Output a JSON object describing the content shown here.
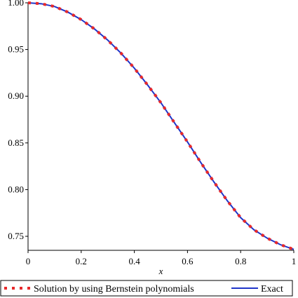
{
  "chart_data": {
    "type": "line",
    "title": "",
    "xlabel": "x",
    "ylabel": "",
    "xlim": [
      0,
      1
    ],
    "ylim": [
      0.735,
      1.0
    ],
    "x_ticks": [
      0,
      0.2,
      0.4,
      0.6,
      0.8,
      1
    ],
    "x_tick_labels": [
      "0",
      "0.2",
      "0.4",
      "0.6",
      "0.8",
      "1"
    ],
    "y_ticks": [
      0.75,
      0.8,
      0.85,
      0.9,
      0.95,
      1.0
    ],
    "y_tick_labels": [
      "0.75",
      "0.80",
      "0.85",
      "0.90",
      "0.95",
      "1.00"
    ],
    "grid": false,
    "legend_position": "bottom",
    "x": [
      0,
      0.05,
      0.1,
      0.15,
      0.2,
      0.25,
      0.3,
      0.35,
      0.4,
      0.45,
      0.5,
      0.55,
      0.6,
      0.65,
      0.7,
      0.75,
      0.8,
      0.85,
      0.9,
      0.95,
      1
    ],
    "series": [
      {
        "name": "Solution by using Bernstein polynomials",
        "style": "dotted",
        "color": "#e8292b",
        "values": [
          1.0,
          0.999,
          0.996,
          0.99,
          0.982,
          0.972,
          0.96,
          0.946,
          0.93,
          0.912,
          0.893,
          0.872,
          0.851,
          0.829,
          0.808,
          0.788,
          0.77,
          0.757,
          0.748,
          0.741,
          0.736
        ]
      },
      {
        "name": "Exact",
        "style": "solid",
        "color": "#1f35c9",
        "values": [
          1.0,
          0.999,
          0.996,
          0.99,
          0.982,
          0.972,
          0.96,
          0.946,
          0.93,
          0.912,
          0.893,
          0.872,
          0.851,
          0.829,
          0.808,
          0.788,
          0.77,
          0.757,
          0.748,
          0.741,
          0.736
        ]
      }
    ]
  }
}
